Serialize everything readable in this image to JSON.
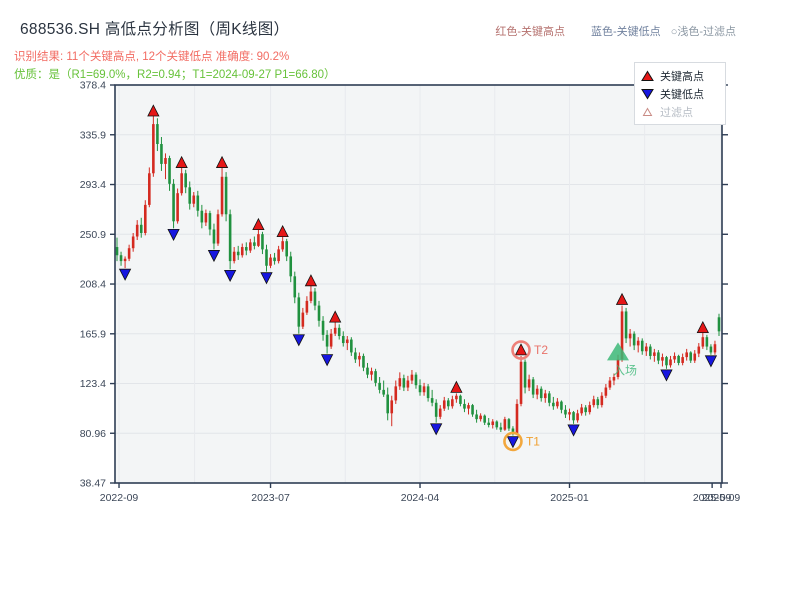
{
  "header": {
    "title": "688536.SH 高低点分析图（周K线图）",
    "inline_legend": [
      {
        "label": "红色-关键高点",
        "color": "#b5716e"
      },
      {
        "label": "蓝色-关键低点",
        "color": "#70819e"
      },
      {
        "label": "○浅色-过滤点",
        "color": "#8b97a3"
      }
    ],
    "result_line": "识别结果: 11个关键高点, 12个关键低点  准确度: 90.2%",
    "quality_line": "优质：是（R1=69.0%，R2=0.94；T1=2024-09-27 P1=66.80）"
  },
  "legend_box": {
    "items": [
      {
        "label": "关键高点",
        "marker": "up-triangle",
        "color": "#e51717"
      },
      {
        "label": "关键低点",
        "marker": "down-triangle",
        "color": "#1717e0"
      },
      {
        "label": "过滤点",
        "marker": "up-triangle-outline",
        "color": "#ffffff",
        "edge": "#c98b85"
      }
    ]
  },
  "chart_data": {
    "type": "candlestick",
    "freq": "weekly",
    "title": "688536.SH 高低点分析图（周K线图）",
    "ylim": [
      38.47,
      378.4
    ],
    "yticks": [
      378.4,
      335.9,
      293.4,
      250.9,
      208.4,
      165.9,
      123.4,
      80.96,
      38.47
    ],
    "xticks": [
      {
        "i": 0.5,
        "label": "2022-09"
      },
      {
        "i": 38,
        "label": "2023-07"
      },
      {
        "i": 75,
        "label": "2024-04"
      },
      {
        "i": 112,
        "label": "2025-01"
      },
      {
        "i": 147.3,
        "label": "2025-09"
      },
      {
        "i": 149.5,
        "label": "2025-09"
      }
    ],
    "x_gridlines": [
      0.5,
      19.2,
      38,
      56.5,
      75,
      93.5,
      112,
      130.6,
      149.5
    ],
    "up_color": "#d42a20",
    "down_color": "#20913f",
    "high_marker_color": "#e51717",
    "low_marker_color": "#1717e0",
    "plot_bg": "#f3f5f6",
    "border_color": "#2e3d54",
    "candles": [
      [
        240,
        248,
        228,
        233
      ],
      [
        233,
        236,
        224,
        228
      ],
      [
        228,
        232,
        222,
        230
      ],
      [
        230,
        242,
        228,
        239
      ],
      [
        239,
        252,
        236,
        249
      ],
      [
        249,
        263,
        246,
        259
      ],
      [
        259,
        265,
        248,
        252
      ],
      [
        252,
        280,
        250,
        276
      ],
      [
        276,
        308,
        274,
        303
      ],
      [
        303,
        352,
        300,
        345
      ],
      [
        345,
        350,
        322,
        328
      ],
      [
        328,
        334,
        305,
        311
      ],
      [
        311,
        320,
        298,
        316
      ],
      [
        316,
        318,
        288,
        294
      ],
      [
        294,
        298,
        256,
        262
      ],
      [
        262,
        290,
        260,
        286
      ],
      [
        286,
        308,
        284,
        303
      ],
      [
        303,
        306,
        286,
        291
      ],
      [
        291,
        296,
        272,
        277
      ],
      [
        277,
        287,
        274,
        284
      ],
      [
        284,
        288,
        266,
        271
      ],
      [
        271,
        276,
        256,
        261
      ],
      [
        261,
        272,
        258,
        269
      ],
      [
        269,
        271,
        250,
        255
      ],
      [
        255,
        260,
        238,
        243
      ],
      [
        243,
        272,
        241,
        268
      ],
      [
        268,
        308,
        266,
        300
      ],
      [
        300,
        304,
        262,
        268
      ],
      [
        268,
        272,
        221,
        228
      ],
      [
        228,
        240,
        226,
        236
      ],
      [
        236,
        241,
        229,
        233
      ],
      [
        233,
        243,
        231,
        240
      ],
      [
        240,
        244,
        233,
        237
      ],
      [
        237,
        247,
        235,
        244
      ],
      [
        244,
        249,
        238,
        241
      ],
      [
        241,
        255,
        240,
        251
      ],
      [
        251,
        253,
        234,
        238
      ],
      [
        238,
        242,
        219,
        224
      ],
      [
        224,
        234,
        222,
        231
      ],
      [
        231,
        235,
        225,
        228
      ],
      [
        228,
        241,
        226,
        238
      ],
      [
        238,
        249,
        236,
        245
      ],
      [
        245,
        247,
        228,
        232
      ],
      [
        232,
        236,
        210,
        215
      ],
      [
        215,
        219,
        192,
        197
      ],
      [
        197,
        201,
        166,
        172
      ],
      [
        172,
        188,
        170,
        184
      ],
      [
        184,
        198,
        182,
        194
      ],
      [
        194,
        207,
        192,
        202
      ],
      [
        202,
        205,
        186,
        190
      ],
      [
        190,
        194,
        172,
        177
      ],
      [
        177,
        181,
        160,
        165
      ],
      [
        165,
        169,
        149,
        155
      ],
      [
        155,
        170,
        153,
        166
      ],
      [
        166,
        176,
        164,
        171
      ],
      [
        171,
        174,
        161,
        164
      ],
      [
        164,
        168,
        155,
        158
      ],
      [
        158,
        164,
        152,
        161
      ],
      [
        161,
        163,
        147,
        150
      ],
      [
        150,
        154,
        141,
        144
      ],
      [
        144,
        150,
        138,
        147
      ],
      [
        147,
        149,
        134,
        137
      ],
      [
        137,
        141,
        128,
        131
      ],
      [
        131,
        137,
        126,
        134
      ],
      [
        134,
        136,
        121,
        124
      ],
      [
        124,
        129,
        115,
        118
      ],
      [
        118,
        126,
        112,
        114
      ],
      [
        114,
        120,
        92,
        98
      ],
      [
        98,
        113,
        87,
        109
      ],
      [
        109,
        126,
        106,
        121
      ],
      [
        121,
        133,
        118,
        128
      ],
      [
        128,
        131,
        117,
        120
      ],
      [
        120,
        130,
        117,
        126
      ],
      [
        126,
        135,
        123,
        131
      ],
      [
        131,
        133,
        119,
        122
      ],
      [
        122,
        127,
        113,
        116
      ],
      [
        116,
        124,
        113,
        121
      ],
      [
        121,
        123,
        108,
        111
      ],
      [
        111,
        118,
        104,
        107
      ],
      [
        107,
        110,
        90,
        95
      ],
      [
        95,
        105,
        93,
        102
      ],
      [
        102,
        112,
        100,
        109
      ],
      [
        109,
        111,
        101,
        104
      ],
      [
        104,
        113,
        102,
        110
      ],
      [
        110,
        115,
        107,
        113
      ],
      [
        113,
        114,
        104,
        106
      ],
      [
        106,
        110,
        99,
        102
      ],
      [
        102,
        107,
        97,
        105
      ],
      [
        105,
        106,
        95,
        97
      ],
      [
        97,
        101,
        90,
        93
      ],
      [
        93,
        98,
        91,
        96
      ],
      [
        96,
        97,
        88,
        90
      ],
      [
        90,
        94,
        86,
        88
      ],
      [
        88,
        93,
        85,
        91
      ],
      [
        91,
        92,
        84,
        86
      ],
      [
        86,
        90,
        82,
        84
      ],
      [
        84,
        95,
        83,
        93
      ],
      [
        93,
        94,
        83,
        85
      ],
      [
        85,
        87,
        79,
        81
      ],
      [
        81,
        110,
        80,
        106
      ],
      [
        106,
        147,
        104,
        142
      ],
      [
        142,
        144,
        115,
        120
      ],
      [
        120,
        131,
        117,
        127
      ],
      [
        127,
        129,
        111,
        114
      ],
      [
        114,
        122,
        110,
        119
      ],
      [
        119,
        121,
        108,
        111
      ],
      [
        111,
        118,
        107,
        115
      ],
      [
        115,
        117,
        104,
        107
      ],
      [
        107,
        112,
        101,
        104
      ],
      [
        104,
        111,
        102,
        108
      ],
      [
        108,
        109,
        98,
        101
      ],
      [
        101,
        105,
        94,
        97
      ],
      [
        97,
        102,
        92,
        99
      ],
      [
        99,
        100,
        89,
        92
      ],
      [
        92,
        101,
        90,
        98
      ],
      [
        98,
        106,
        96,
        103
      ],
      [
        103,
        105,
        96,
        99
      ],
      [
        99,
        108,
        97,
        105
      ],
      [
        105,
        113,
        103,
        110
      ],
      [
        110,
        112,
        102,
        105
      ],
      [
        105,
        116,
        103,
        113
      ],
      [
        113,
        123,
        111,
        120
      ],
      [
        120,
        129,
        118,
        126
      ],
      [
        126,
        132,
        122,
        129
      ],
      [
        129,
        148,
        127,
        144
      ],
      [
        144,
        190,
        142,
        185
      ],
      [
        185,
        188,
        158,
        162
      ],
      [
        162,
        170,
        155,
        166
      ],
      [
        166,
        168,
        152,
        156
      ],
      [
        156,
        163,
        150,
        160
      ],
      [
        160,
        162,
        148,
        151
      ],
      [
        151,
        158,
        147,
        155
      ],
      [
        155,
        157,
        144,
        147
      ],
      [
        147,
        153,
        142,
        150
      ],
      [
        150,
        152,
        140,
        143
      ],
      [
        143,
        149,
        138,
        146
      ],
      [
        146,
        147,
        136,
        139
      ],
      [
        139,
        147,
        137,
        144
      ],
      [
        144,
        150,
        141,
        147
      ],
      [
        147,
        148,
        139,
        141
      ],
      [
        141,
        149,
        139,
        146
      ],
      [
        146,
        153,
        143,
        150
      ],
      [
        150,
        151,
        141,
        143
      ],
      [
        143,
        152,
        141,
        149
      ],
      [
        149,
        158,
        146,
        155
      ],
      [
        155,
        167,
        153,
        163
      ],
      [
        163,
        165,
        152,
        155
      ],
      [
        155,
        157,
        148,
        150
      ],
      [
        150,
        160,
        148,
        157
      ],
      [
        180,
        183,
        164,
        168
      ]
    ],
    "key_highs": [
      {
        "i": 9,
        "p": 356
      },
      {
        "i": 16,
        "p": 312
      },
      {
        "i": 26,
        "p": 312
      },
      {
        "i": 35,
        "p": 259
      },
      {
        "i": 41,
        "p": 253
      },
      {
        "i": 48,
        "p": 211
      },
      {
        "i": 54,
        "p": 180
      },
      {
        "i": 84,
        "p": 120
      },
      {
        "i": 100,
        "p": 152,
        "ring": "#ee8079",
        "tag": "T2",
        "tag_color": "#e8736b"
      },
      {
        "i": 125,
        "p": 195
      },
      {
        "i": 145,
        "p": 171
      }
    ],
    "key_lows": [
      {
        "i": 2,
        "p": 217
      },
      {
        "i": 14,
        "p": 251
      },
      {
        "i": 24,
        "p": 233
      },
      {
        "i": 28,
        "p": 216
      },
      {
        "i": 37,
        "p": 214
      },
      {
        "i": 45,
        "p": 161
      },
      {
        "i": 52,
        "p": 144
      },
      {
        "i": 79,
        "p": 85
      },
      {
        "i": 98,
        "p": 74,
        "ring": "#f2a73d",
        "tag": "T1",
        "tag_color": "#f0a030"
      },
      {
        "i": 113,
        "p": 84
      },
      {
        "i": 136,
        "p": 131
      },
      {
        "i": 147,
        "p": 143
      }
    ],
    "entry_marker": {
      "i": 124,
      "p": 150,
      "label": "入场",
      "color": "#3cb878"
    }
  }
}
